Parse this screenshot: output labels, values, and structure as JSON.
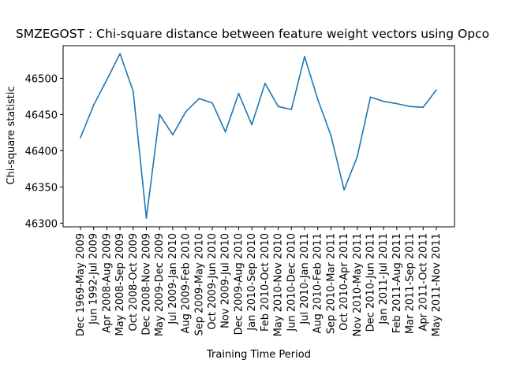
{
  "chart_data": {
    "type": "line",
    "title": "SMZEGOST : Chi-square distance between feature weight vectors using Opco",
    "xlabel": "Training Time Period",
    "ylabel": "Chi-square statistic",
    "ylim": [
      46295,
      46545
    ],
    "yticks": [
      46300,
      46350,
      46400,
      46450,
      46500
    ],
    "grid": false,
    "categories": [
      "Dec 1969-May 2009",
      "Jun 1992-Jul 2009",
      "Apr 2008-Aug 2009",
      "May 2008-Sep 2009",
      "Oct 2008-Oct 2009",
      "Dec 2008-Nov 2009",
      "May 2009-Dec 2009",
      "Jul 2009-Jan 2010",
      "Aug 2009-Feb 2010",
      "Sep 2009-May 2010",
      "Oct 2009-Jun 2010",
      "Nov 2009-Jul 2010",
      "Dec 2009-Aug 2010",
      "Jan 2010-Sep 2010",
      "Feb 2010-Oct 2010",
      "May 2010-Nov 2010",
      "Jun 2010-Dec 2010",
      "Jul 2010-Jan 2011",
      "Aug 2010-Feb 2011",
      "Sep 2010-Mar 2011",
      "Oct 2010-Apr 2011",
      "Nov 2010-May 2011",
      "Dec 2010-Jun 2011",
      "Jan 2011-Jul 2011",
      "Feb 2011-Aug 2011",
      "Mar 2011-Sep 2011",
      "Apr 2011-Oct 2011",
      "May 2011-Nov 2011"
    ],
    "series": [
      {
        "color": "#1f77b4",
        "values": [
          46418,
          46463,
          46498,
          46534,
          46482,
          46307,
          46450,
          46422,
          46454,
          46472,
          46466,
          46426,
          46479,
          46436,
          46493,
          46461,
          46457,
          46530,
          46471,
          46421,
          46346,
          46392,
          46474,
          46468,
          46465,
          46461,
          46460,
          46484
        ]
      }
    ]
  }
}
